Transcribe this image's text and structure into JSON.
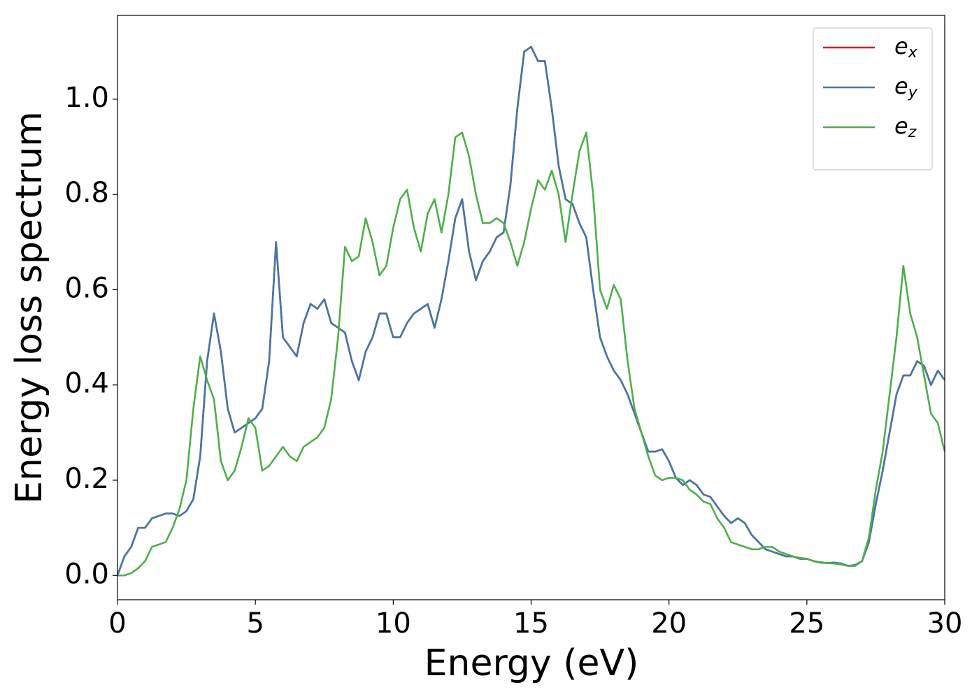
{
  "chart_data": {
    "type": "line",
    "xlabel": "Energy (eV)",
    "ylabel": "Energy loss spectrum",
    "x": [
      0,
      0.25,
      0.5,
      0.75,
      1,
      1.25,
      1.5,
      1.75,
      2,
      2.25,
      2.5,
      2.75,
      3,
      3.25,
      3.5,
      3.75,
      4,
      4.25,
      4.5,
      4.75,
      5,
      5.25,
      5.5,
      5.75,
      6,
      6.25,
      6.5,
      6.75,
      7,
      7.25,
      7.5,
      7.75,
      8,
      8.25,
      8.5,
      8.75,
      9,
      9.25,
      9.5,
      9.75,
      10,
      10.25,
      10.5,
      10.75,
      11,
      11.25,
      11.5,
      11.75,
      12,
      12.25,
      12.5,
      12.75,
      13,
      13.25,
      13.5,
      13.75,
      14,
      14.25,
      14.5,
      14.75,
      15,
      15.25,
      15.5,
      15.75,
      16,
      16.25,
      16.5,
      16.75,
      17,
      17.25,
      17.5,
      17.75,
      18,
      18.25,
      18.5,
      18.75,
      19,
      19.25,
      19.5,
      19.75,
      20,
      20.25,
      20.5,
      20.75,
      21,
      21.25,
      21.5,
      21.75,
      22,
      22.25,
      22.5,
      22.75,
      23,
      23.25,
      23.5,
      23.75,
      24,
      24.25,
      24.5,
      24.75,
      25,
      25.25,
      25.5,
      25.75,
      26,
      26.25,
      26.5,
      26.75,
      27,
      27.25,
      27.5,
      27.75,
      28,
      28.25,
      28.5,
      28.75,
      29,
      29.25,
      29.5,
      29.75,
      30
    ],
    "series": [
      {
        "name": "e_x",
        "color": "#e41a1c",
        "values": [
          0,
          0.04,
          0.06,
          0.1,
          0.1,
          0.12,
          0.125,
          0.13,
          0.13,
          0.125,
          0.135,
          0.16,
          0.25,
          0.45,
          0.55,
          0.47,
          0.35,
          0.3,
          0.31,
          0.32,
          0.33,
          0.35,
          0.45,
          0.7,
          0.5,
          0.48,
          0.46,
          0.53,
          0.57,
          0.56,
          0.58,
          0.53,
          0.52,
          0.51,
          0.45,
          0.41,
          0.47,
          0.5,
          0.55,
          0.55,
          0.5,
          0.5,
          0.53,
          0.55,
          0.56,
          0.57,
          0.52,
          0.58,
          0.66,
          0.75,
          0.79,
          0.68,
          0.62,
          0.66,
          0.68,
          0.71,
          0.72,
          0.82,
          0.98,
          1.1,
          1.11,
          1.08,
          1.08,
          0.98,
          0.86,
          0.79,
          0.78,
          0.74,
          0.71,
          0.6,
          0.5,
          0.46,
          0.43,
          0.41,
          0.38,
          0.34,
          0.3,
          0.26,
          0.26,
          0.265,
          0.24,
          0.205,
          0.19,
          0.2,
          0.19,
          0.17,
          0.165,
          0.145,
          0.125,
          0.11,
          0.12,
          0.11,
          0.085,
          0.07,
          0.055,
          0.05,
          0.045,
          0.04,
          0.04,
          0.035,
          0.035,
          0.03,
          0.027,
          0.026,
          0.027,
          0.025,
          0.02,
          0.022,
          0.03,
          0.07,
          0.15,
          0.22,
          0.3,
          0.38,
          0.42,
          0.42,
          0.45,
          0.44,
          0.4,
          0.43,
          0.41
        ]
      },
      {
        "name": "e_y",
        "color": "#4477aa",
        "values": [
          0,
          0.04,
          0.06,
          0.1,
          0.1,
          0.12,
          0.125,
          0.13,
          0.13,
          0.125,
          0.135,
          0.16,
          0.25,
          0.45,
          0.55,
          0.47,
          0.35,
          0.3,
          0.31,
          0.32,
          0.33,
          0.35,
          0.45,
          0.7,
          0.5,
          0.48,
          0.46,
          0.53,
          0.57,
          0.56,
          0.58,
          0.53,
          0.52,
          0.51,
          0.45,
          0.41,
          0.47,
          0.5,
          0.55,
          0.55,
          0.5,
          0.5,
          0.53,
          0.55,
          0.56,
          0.57,
          0.52,
          0.58,
          0.66,
          0.75,
          0.79,
          0.68,
          0.62,
          0.66,
          0.68,
          0.71,
          0.72,
          0.82,
          0.98,
          1.1,
          1.11,
          1.08,
          1.08,
          0.98,
          0.86,
          0.79,
          0.78,
          0.74,
          0.71,
          0.6,
          0.5,
          0.46,
          0.43,
          0.41,
          0.38,
          0.34,
          0.3,
          0.26,
          0.26,
          0.265,
          0.24,
          0.205,
          0.19,
          0.2,
          0.19,
          0.17,
          0.165,
          0.145,
          0.125,
          0.11,
          0.12,
          0.11,
          0.085,
          0.07,
          0.055,
          0.05,
          0.045,
          0.04,
          0.04,
          0.035,
          0.035,
          0.03,
          0.027,
          0.026,
          0.027,
          0.025,
          0.02,
          0.022,
          0.03,
          0.07,
          0.15,
          0.22,
          0.3,
          0.38,
          0.42,
          0.42,
          0.45,
          0.44,
          0.4,
          0.43,
          0.41
        ]
      },
      {
        "name": "e_z",
        "color": "#4daf4a",
        "values": [
          0,
          0,
          0.005,
          0.015,
          0.03,
          0.06,
          0.065,
          0.07,
          0.1,
          0.14,
          0.2,
          0.35,
          0.46,
          0.41,
          0.37,
          0.24,
          0.2,
          0.22,
          0.27,
          0.33,
          0.31,
          0.22,
          0.23,
          0.25,
          0.27,
          0.25,
          0.24,
          0.27,
          0.28,
          0.29,
          0.31,
          0.37,
          0.5,
          0.69,
          0.66,
          0.67,
          0.75,
          0.7,
          0.63,
          0.65,
          0.73,
          0.79,
          0.81,
          0.73,
          0.68,
          0.76,
          0.79,
          0.72,
          0.8,
          0.92,
          0.93,
          0.88,
          0.8,
          0.74,
          0.74,
          0.75,
          0.74,
          0.7,
          0.65,
          0.7,
          0.77,
          0.83,
          0.81,
          0.85,
          0.8,
          0.7,
          0.8,
          0.89,
          0.93,
          0.8,
          0.6,
          0.56,
          0.61,
          0.58,
          0.45,
          0.35,
          0.3,
          0.25,
          0.21,
          0.2,
          0.205,
          0.205,
          0.2,
          0.18,
          0.17,
          0.155,
          0.15,
          0.12,
          0.1,
          0.07,
          0.065,
          0.06,
          0.055,
          0.055,
          0.06,
          0.06,
          0.05,
          0.045,
          0.04,
          0.037,
          0.035,
          0.03,
          0.028,
          0.026,
          0.025,
          0.023,
          0.02,
          0.02,
          0.03,
          0.08,
          0.18,
          0.26,
          0.38,
          0.5,
          0.65,
          0.55,
          0.5,
          0.42,
          0.34,
          0.32,
          0.26
        ]
      }
    ],
    "xlim": [
      0,
      30
    ],
    "xticks": [
      0,
      5,
      10,
      15,
      20,
      25,
      30
    ],
    "ylim": [
      -0.051,
      1.176
    ],
    "yticks": [
      {
        "value": 0,
        "label": "0.0"
      },
      0.2,
      0.4,
      0.6,
      0.8,
      {
        "value": 1,
        "label": "1.0"
      }
    ],
    "grid": false,
    "legend": "upper right"
  }
}
